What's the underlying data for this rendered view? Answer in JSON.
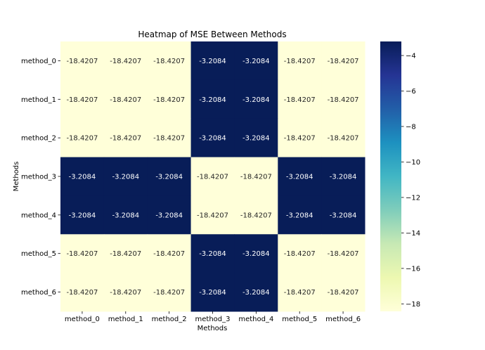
{
  "chart_data": {
    "type": "heatmap",
    "title": "Heatmap of MSE Between Methods",
    "xlabel": "Methods",
    "ylabel": "Methods",
    "x_categories": [
      "method_0",
      "method_1",
      "method_2",
      "method_3",
      "method_4",
      "method_5",
      "method_6"
    ],
    "y_categories": [
      "method_0",
      "method_1",
      "method_2",
      "method_3",
      "method_4",
      "method_5",
      "method_6"
    ],
    "values": [
      [
        -18.4207,
        -18.4207,
        -18.4207,
        -3.2084,
        -3.2084,
        -18.4207,
        -18.4207
      ],
      [
        -18.4207,
        -18.4207,
        -18.4207,
        -3.2084,
        -3.2084,
        -18.4207,
        -18.4207
      ],
      [
        -18.4207,
        -18.4207,
        -18.4207,
        -3.2084,
        -3.2084,
        -18.4207,
        -18.4207
      ],
      [
        -3.2084,
        -3.2084,
        -3.2084,
        -18.4207,
        -18.4207,
        -3.2084,
        -3.2084
      ],
      [
        -3.2084,
        -3.2084,
        -3.2084,
        -18.4207,
        -18.4207,
        -3.2084,
        -3.2084
      ],
      [
        -18.4207,
        -18.4207,
        -18.4207,
        -3.2084,
        -3.2084,
        -18.4207,
        -18.4207
      ],
      [
        -18.4207,
        -18.4207,
        -18.4207,
        -3.2084,
        -3.2084,
        -18.4207,
        -18.4207
      ]
    ],
    "annotation_format": "4 decimals",
    "colormap": "YlGnBu",
    "color_range": [
      -18.4207,
      -3.2084
    ],
    "colorbar": {
      "ticks": [
        -4,
        -6,
        -8,
        -10,
        -12,
        -14,
        -16,
        -18
      ],
      "tick_labels": [
        "−4",
        "−6",
        "−8",
        "−10",
        "−12",
        "−14",
        "−16",
        "−18"
      ],
      "placement": "right"
    },
    "colors": {
      "low": "#ffffd9",
      "high": "#081d58",
      "annotation_dark_text": "#262626",
      "annotation_light_text": "#ffffff"
    }
  }
}
